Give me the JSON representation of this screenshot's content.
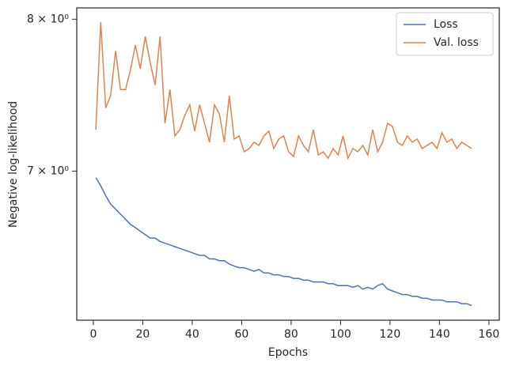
{
  "chart_data": {
    "type": "line",
    "xlabel": "Epochs",
    "ylabel": "Negative log-likelihood",
    "x": [
      1,
      3,
      5,
      7,
      9,
      11,
      13,
      15,
      17,
      19,
      21,
      23,
      25,
      27,
      29,
      31,
      33,
      35,
      37,
      39,
      41,
      43,
      45,
      47,
      49,
      51,
      53,
      55,
      57,
      59,
      61,
      63,
      65,
      67,
      69,
      71,
      73,
      75,
      77,
      79,
      81,
      83,
      85,
      87,
      89,
      91,
      93,
      95,
      97,
      99,
      101,
      103,
      105,
      107,
      109,
      111,
      113,
      115,
      117,
      119,
      121,
      123,
      125,
      127,
      129,
      131,
      133,
      135,
      137,
      139,
      141,
      143,
      145,
      147,
      149,
      151,
      153
    ],
    "series": [
      {
        "name": "Loss",
        "color": "#4c72b0",
        "values": [
          6.96,
          6.91,
          6.85,
          6.8,
          6.77,
          6.74,
          6.71,
          6.68,
          6.66,
          6.64,
          6.62,
          6.6,
          6.6,
          6.58,
          6.57,
          6.56,
          6.55,
          6.54,
          6.53,
          6.52,
          6.51,
          6.5,
          6.5,
          6.48,
          6.48,
          6.47,
          6.47,
          6.45,
          6.44,
          6.43,
          6.43,
          6.42,
          6.41,
          6.42,
          6.4,
          6.4,
          6.39,
          6.39,
          6.38,
          6.38,
          6.37,
          6.37,
          6.36,
          6.36,
          6.35,
          6.35,
          6.35,
          6.34,
          6.34,
          6.33,
          6.33,
          6.33,
          6.32,
          6.33,
          6.31,
          6.32,
          6.31,
          6.33,
          6.34,
          6.31,
          6.3,
          6.29,
          6.28,
          6.28,
          6.27,
          6.27,
          6.26,
          6.26,
          6.25,
          6.25,
          6.25,
          6.24,
          6.24,
          6.24,
          6.23,
          6.23,
          6.22
        ]
      },
      {
        "name": "Val. loss",
        "color": "#dd8452",
        "values": [
          7.26,
          7.98,
          7.4,
          7.48,
          7.78,
          7.52,
          7.52,
          7.65,
          7.82,
          7.66,
          7.88,
          7.7,
          7.55,
          7.88,
          7.3,
          7.52,
          7.22,
          7.26,
          7.35,
          7.42,
          7.25,
          7.42,
          7.3,
          7.18,
          7.42,
          7.36,
          7.18,
          7.48,
          7.2,
          7.22,
          7.12,
          7.14,
          7.18,
          7.16,
          7.22,
          7.25,
          7.14,
          7.2,
          7.22,
          7.12,
          7.09,
          7.22,
          7.16,
          7.12,
          7.26,
          7.1,
          7.12,
          7.08,
          7.14,
          7.1,
          7.22,
          7.08,
          7.14,
          7.12,
          7.16,
          7.1,
          7.26,
          7.12,
          7.18,
          7.3,
          7.28,
          7.18,
          7.16,
          7.22,
          7.18,
          7.2,
          7.14,
          7.16,
          7.18,
          7.14,
          7.24,
          7.18,
          7.2,
          7.14,
          7.18,
          7.16,
          7.14
        ]
      }
    ],
    "xlim": [
      -6.7,
      164.2
    ],
    "xticks": [
      0,
      20,
      40,
      60,
      80,
      100,
      120,
      140,
      160
    ],
    "ylim": [
      6.14,
      8.08
    ],
    "ylog": true,
    "yticks": [
      {
        "value": 8,
        "label": "8 × 10⁰"
      },
      {
        "value": 7,
        "label": "7 × 10⁰"
      }
    ],
    "legend": "upper right"
  }
}
